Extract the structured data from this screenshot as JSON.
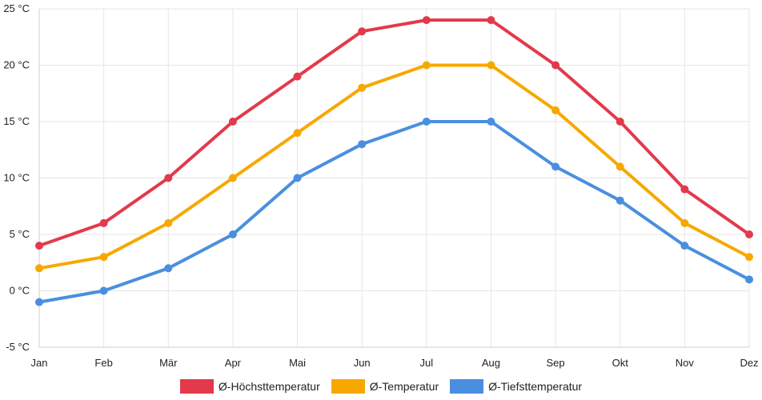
{
  "chart_data": {
    "type": "line",
    "categories": [
      "Jan",
      "Feb",
      "Mär",
      "Apr",
      "Mai",
      "Jun",
      "Jul",
      "Aug",
      "Sep",
      "Okt",
      "Nov",
      "Dez"
    ],
    "ylim": [
      -5,
      25
    ],
    "yticks": [
      25,
      20,
      15,
      10,
      5,
      0,
      -5
    ],
    "y_unit": " °C",
    "grid": true,
    "legend_position": "bottom",
    "series": [
      {
        "name": "Ø-Höchsttemperatur",
        "color": "#e23a4b",
        "values": [
          4,
          6,
          10,
          15,
          19,
          23,
          24,
          24,
          20,
          15,
          9,
          5
        ]
      },
      {
        "name": "Ø-Temperatur",
        "color": "#f7a800",
        "values": [
          2,
          3,
          6,
          10,
          14,
          18,
          20,
          20,
          16,
          11,
          6,
          3
        ]
      },
      {
        "name": "Ø-Tiefsttemperatur",
        "color": "#4a8fdf",
        "values": [
          -1,
          0,
          2,
          5,
          10,
          13,
          15,
          15,
          11,
          8,
          4,
          1
        ]
      }
    ]
  }
}
